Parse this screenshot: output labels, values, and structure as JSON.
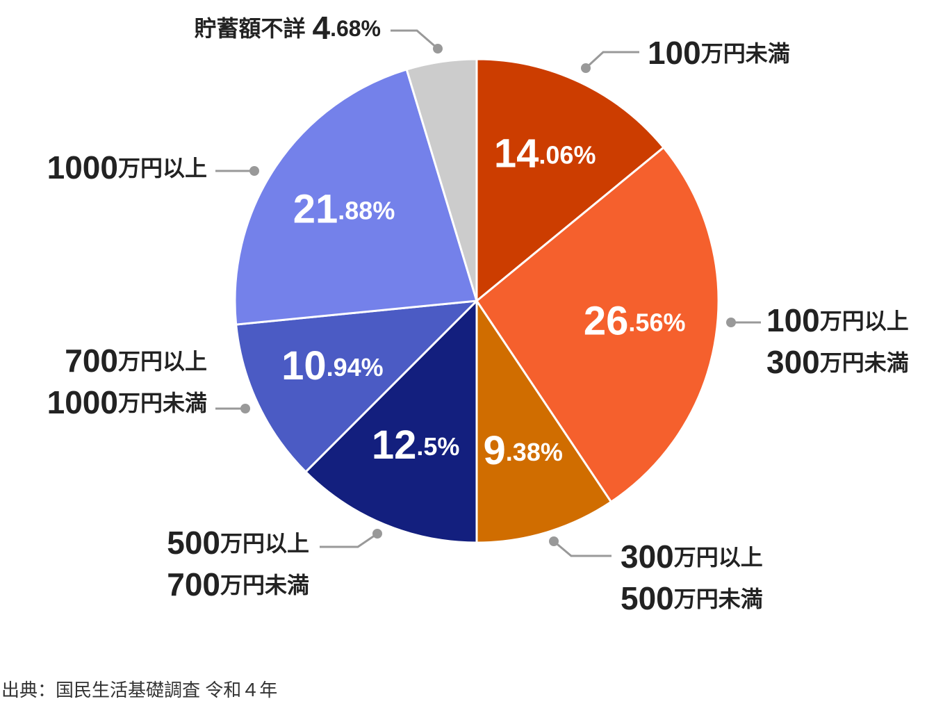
{
  "chart_data": {
    "type": "pie",
    "categories": [
      "100万円未満",
      "100万円以上\n300万円未満",
      "300万円以上\n500万円未満",
      "500万円以上\n700万円未満",
      "700万円以上\n1000万円未満",
      "1000万円以上",
      "貯蓄額不詳"
    ],
    "values": [
      14.06,
      26.56,
      9.38,
      12.5,
      10.94,
      21.88,
      4.68
    ],
    "value_labels": [
      "14.06%",
      "26.56%",
      "9.38%",
      "12.5%",
      "10.94%",
      "21.88%",
      "4.68%"
    ],
    "colors": [
      "#cc3d00",
      "#f5602d",
      "#d06d00",
      "#131f7e",
      "#4b5bc4",
      "#7481ea",
      "#cccccc"
    ],
    "source": "出典：国民生活基礎調査 令和４年"
  }
}
